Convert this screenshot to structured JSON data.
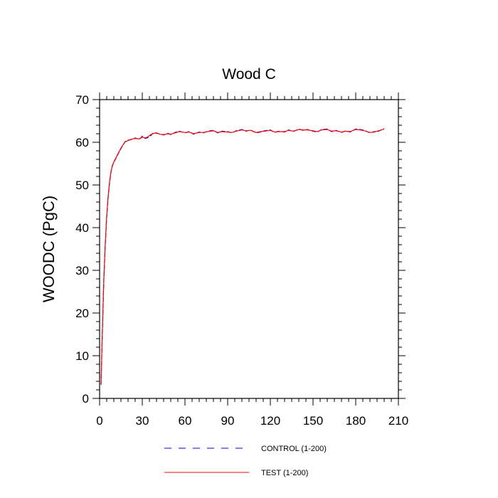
{
  "chart_data": {
    "type": "line",
    "title": "Wood C",
    "xlabel": "",
    "ylabel": "WOODC  (PgC)",
    "xlim": [
      0,
      210
    ],
    "ylim": [
      0,
      70
    ],
    "xticks": [
      0,
      30,
      60,
      90,
      120,
      150,
      180,
      210
    ],
    "yticks": [
      0,
      10,
      20,
      30,
      40,
      50,
      60,
      70
    ],
    "x_minor_step": 5,
    "y_minor_step": 2,
    "grid": false,
    "legend_position": "bottom",
    "series": [
      {
        "name": "CONTROL (1-200)",
        "color": "#0000ff",
        "style": "dashed",
        "x": [
          1,
          2,
          3,
          4,
          5,
          6,
          7,
          8,
          9,
          10,
          12,
          14,
          16,
          18,
          20,
          22,
          25,
          28,
          30,
          32,
          34,
          36,
          38,
          40,
          42,
          45,
          48,
          50,
          53,
          56,
          60,
          63,
          66,
          70,
          73,
          76,
          80,
          83,
          86,
          90,
          93,
          96,
          100,
          103,
          106,
          110,
          113,
          116,
          120,
          123,
          126,
          130,
          133,
          136,
          140,
          143,
          146,
          150,
          153,
          156,
          160,
          163,
          166,
          170,
          173,
          176,
          180,
          183,
          186,
          190,
          193,
          196,
          200
        ],
        "y": [
          3.2,
          16,
          28,
          36,
          42.5,
          47,
          50.5,
          53,
          54.5,
          55.3,
          56.6,
          57.9,
          59.1,
          60.2,
          60.5,
          60.6,
          61,
          60.7,
          61.4,
          60.9,
          61.1,
          61.6,
          62.3,
          62.1,
          62,
          61.7,
          62.1,
          61.8,
          62.3,
          62.6,
          62.2,
          62.5,
          61.9,
          62.4,
          62.2,
          62.6,
          62.8,
          62.2,
          62.6,
          62.5,
          62.2,
          62.7,
          63,
          62.6,
          62.9,
          62.2,
          62.4,
          62.7,
          62.9,
          62.3,
          62.6,
          62.4,
          62.9,
          62.5,
          63.1,
          62.8,
          63,
          62.6,
          62.4,
          63,
          63.1,
          62.5,
          62.8,
          62.3,
          62.7,
          62.4,
          63.1,
          63,
          62.8,
          62.2,
          62.5,
          62.6,
          63.2
        ]
      },
      {
        "name": "TEST (1-200)",
        "color": "#ff0000",
        "style": "solid",
        "x": [
          1,
          2,
          3,
          4,
          5,
          6,
          7,
          8,
          9,
          10,
          12,
          14,
          16,
          18,
          20,
          22,
          25,
          28,
          30,
          32,
          34,
          36,
          38,
          40,
          42,
          45,
          48,
          50,
          53,
          56,
          60,
          63,
          66,
          70,
          73,
          76,
          80,
          83,
          86,
          90,
          93,
          96,
          100,
          103,
          106,
          110,
          113,
          116,
          120,
          123,
          126,
          130,
          133,
          136,
          140,
          143,
          146,
          150,
          153,
          156,
          160,
          163,
          166,
          170,
          173,
          176,
          180,
          183,
          186,
          190,
          193,
          196,
          200
        ],
        "y": [
          3.4,
          16.5,
          28.3,
          36.4,
          42.8,
          47.3,
          50.7,
          53.1,
          54.6,
          55.4,
          56.7,
          58,
          59.2,
          60.1,
          60.4,
          60.7,
          60.9,
          60.8,
          61.2,
          61,
          61.3,
          61.8,
          62.1,
          62.2,
          61.9,
          61.8,
          62,
          61.9,
          62.2,
          62.5,
          62.3,
          62.4,
          62,
          62.3,
          62.3,
          62.5,
          62.7,
          62.3,
          62.5,
          62.4,
          62.3,
          62.6,
          62.9,
          62.7,
          62.8,
          62.3,
          62.5,
          62.6,
          62.8,
          62.4,
          62.5,
          62.5,
          62.8,
          62.6,
          63,
          62.9,
          62.9,
          62.7,
          62.5,
          62.9,
          63,
          62.6,
          62.7,
          62.4,
          62.6,
          62.5,
          63,
          62.9,
          62.7,
          62.3,
          62.4,
          62.7,
          63.1
        ]
      }
    ]
  }
}
